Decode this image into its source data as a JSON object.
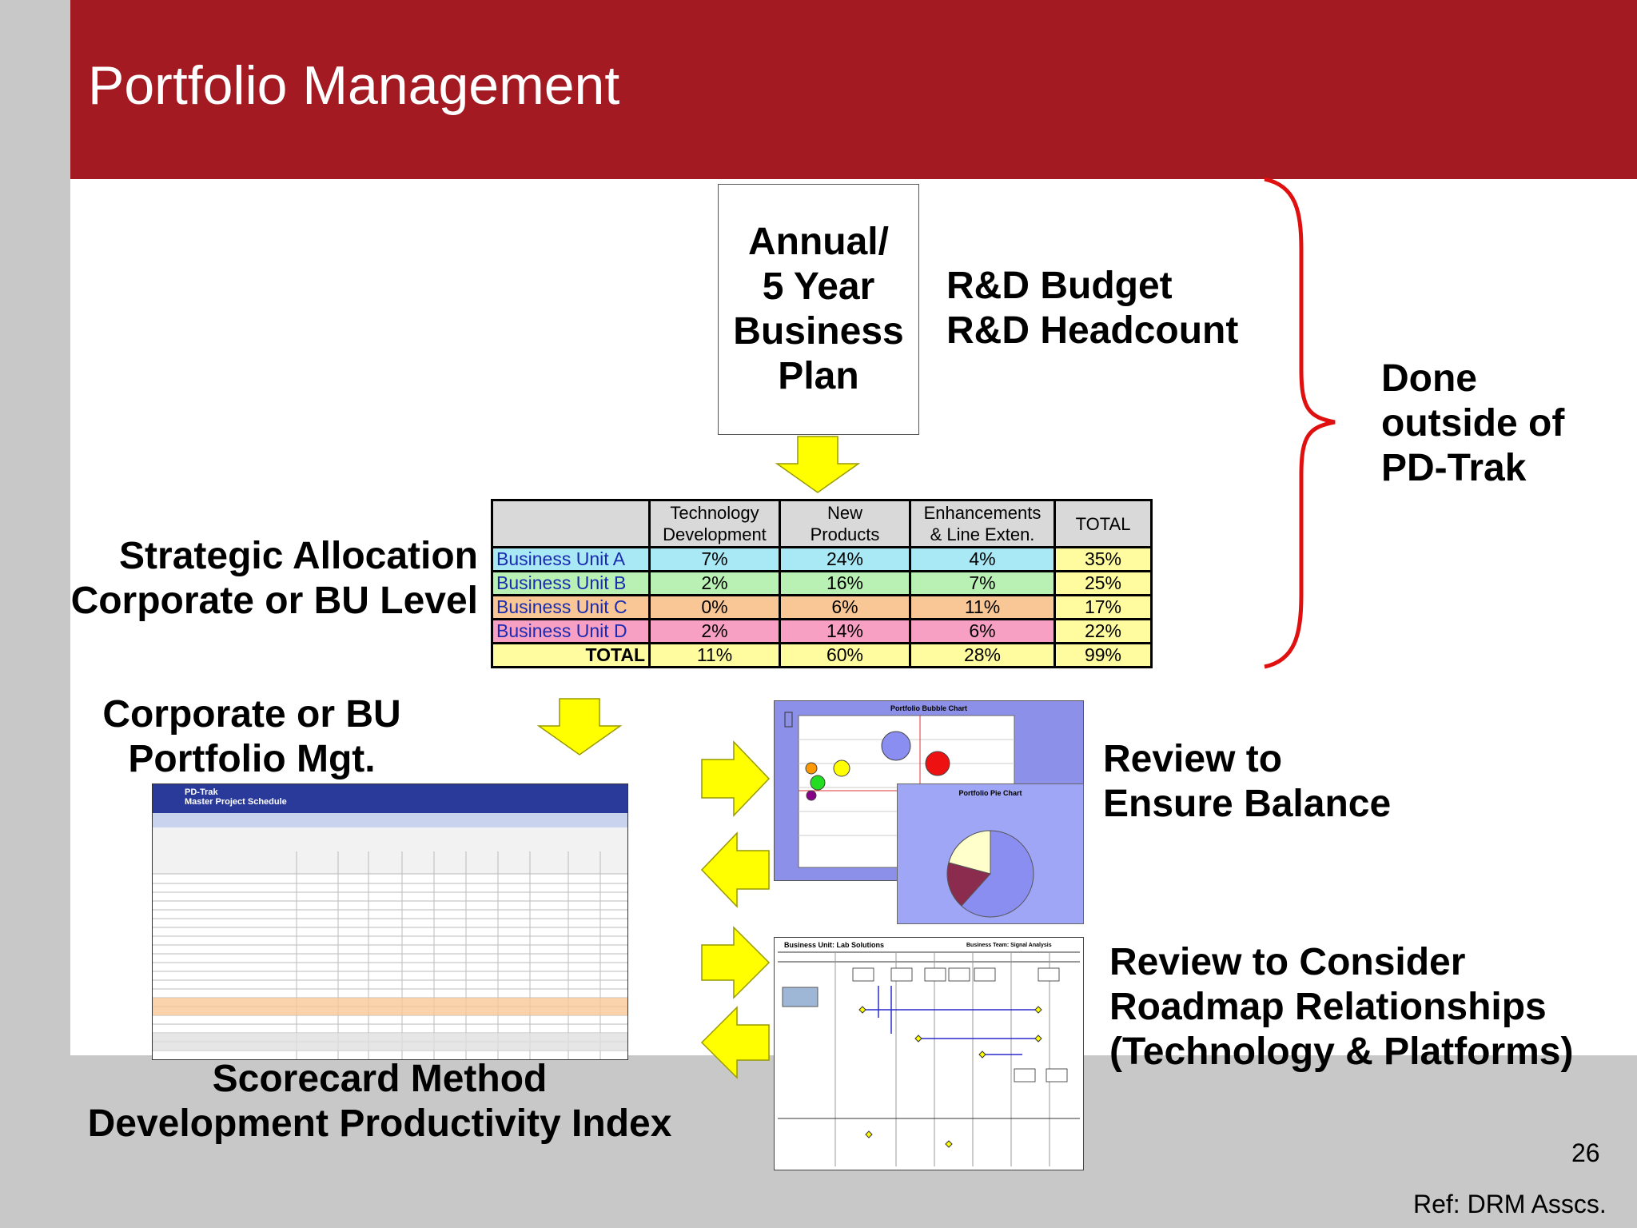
{
  "slide": {
    "title": "Portfolio Management",
    "page_number": "26",
    "reference": "Ref: DRM Asscs."
  },
  "plan_box": {
    "line1": "Annual/",
    "line2": "5 Year",
    "line3": "Business",
    "line4": "Plan"
  },
  "budget": {
    "line1": "R&D Budget",
    "line2": "R&D Headcount"
  },
  "done_outside": {
    "line1": "Done",
    "line2": "outside of",
    "line3": "PD-Trak"
  },
  "strategic": {
    "line1": "Strategic Allocation",
    "line2": "Corporate or BU Level"
  },
  "allocation_table": {
    "headers": [
      "",
      "Technology Development",
      "New Products",
      "Enhancements & Line Exten.",
      "TOTAL"
    ],
    "header_lines": [
      [
        "",
        ""
      ],
      [
        "Technology",
        "Development"
      ],
      [
        "New",
        "Products"
      ],
      [
        "Enhancements",
        "& Line Exten."
      ],
      [
        "",
        "TOTAL"
      ]
    ],
    "rows": [
      {
        "unit": "Business Unit A",
        "tech": "7%",
        "new": "24%",
        "enh": "4%",
        "total": "35%",
        "color": "#a9e8f5"
      },
      {
        "unit": "Business Unit B",
        "tech": "2%",
        "new": "16%",
        "enh": "7%",
        "total": "25%",
        "color": "#b9f0b4"
      },
      {
        "unit": "Business Unit C",
        "tech": "0%",
        "new": "6%",
        "enh": "11%",
        "total": "17%",
        "color": "#f9c796"
      },
      {
        "unit": "Business Unit D",
        "tech": "2%",
        "new": "14%",
        "enh": "6%",
        "total": "22%",
        "color": "#f7a0c4"
      },
      {
        "unit": "TOTAL",
        "tech": "11%",
        "new": "60%",
        "enh": "28%",
        "total": "99%",
        "color": "#fffca0"
      }
    ],
    "total_column_color": "#fffca0",
    "unit_text_color": "#1a2bb0"
  },
  "portfolio": {
    "line1": "Corporate or BU",
    "line2": "Portfolio Mgt."
  },
  "scorecard": {
    "line1": "Scorecard Method",
    "line2": "Development Productivity Index",
    "thumb_title": "PD-Trak",
    "thumb_subtitle": "Master Project Schedule"
  },
  "balance": {
    "line1": "Review to",
    "line2": "Ensure Balance",
    "bubble_title": "Portfolio Bubble Chart",
    "pie_title": "Portfolio Pie Chart"
  },
  "roadmap": {
    "line1": "Review to Consider",
    "line2": "Roadmap Relationships",
    "line3": "(Technology & Platforms)",
    "thumb_unit": "Business Unit: Lab Solutions",
    "thumb_team": "Business Team: Signal Analysis"
  },
  "colors": {
    "title_bar": "#a31a22",
    "arrow": "#ffff00",
    "brace": "#e01010"
  }
}
